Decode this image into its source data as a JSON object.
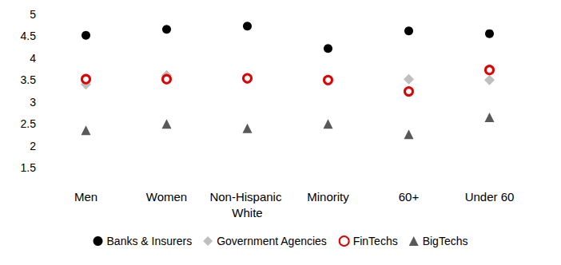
{
  "chart_data": {
    "type": "scatter",
    "categories": [
      "Men",
      "Women",
      "Non-Hispanic White",
      "Minority",
      "60+",
      "Under 60"
    ],
    "series": [
      {
        "name": "Banks & Insurers",
        "color": "#000000",
        "marker": "circle",
        "values": [
          4.52,
          4.66,
          4.73,
          4.22,
          4.62,
          4.56
        ]
      },
      {
        "name": "Government Agencies",
        "color": "#bfbfbf",
        "marker": "diamond",
        "values": [
          3.4,
          3.61,
          3.53,
          3.5,
          3.52,
          3.5
        ]
      },
      {
        "name": "FinTechs",
        "color": "#e00000",
        "marker": "ring",
        "values": [
          3.52,
          3.52,
          3.54,
          3.5,
          3.24,
          3.73
        ]
      },
      {
        "name": "BigTechs",
        "color": "#595959",
        "marker": "triangle",
        "values": [
          2.35,
          2.5,
          2.4,
          2.5,
          2.26,
          2.65
        ]
      }
    ],
    "ylim": [
      1.5,
      5
    ],
    "yticks": [
      1.5,
      2,
      2.5,
      3,
      3.5,
      4,
      4.5,
      5
    ],
    "grid": false,
    "legend": "bottom"
  }
}
